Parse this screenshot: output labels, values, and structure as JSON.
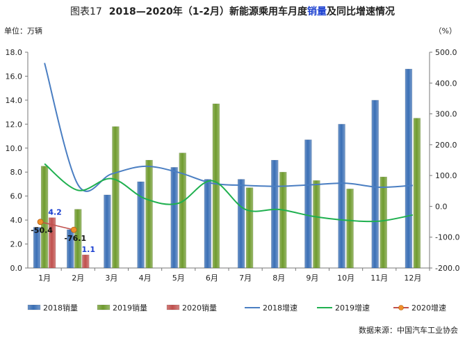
{
  "title": {
    "figure_no": "图表17",
    "main_before": "2018—2020年（1-2月）新能源乘用车月度",
    "highlight": "销量",
    "main_after": "及同比增速情况"
  },
  "unit_left": "单位：万辆",
  "unit_right": "（%）",
  "source": "数据来源：中国汽车工业协会",
  "colors": {
    "bar2018": "#3a6fb5",
    "bar2019": "#6f9b2e",
    "bar2020": "#c0504d",
    "line2018": "#4a7ec2",
    "line2019": "#1fb04f",
    "line2020": "#c0504d",
    "marker2020": "#f0902a",
    "label2020": "#1a3fd0"
  },
  "chart_data": {
    "type": "bar",
    "categories": [
      "1月",
      "2月",
      "3月",
      "4月",
      "5月",
      "6月",
      "7月",
      "8月",
      "9月",
      "10月",
      "11月",
      "12月"
    ],
    "y_left": {
      "min": 0,
      "max": 18,
      "step": 2,
      "tick_labels": [
        "0.0",
        "2.0",
        "4.0",
        "6.0",
        "8.0",
        "10.0",
        "12.0",
        "14.0",
        "16.0",
        "18.0"
      ]
    },
    "y_right": {
      "min": -200,
      "max": 500,
      "step": 100,
      "tick_labels": [
        "-200.0",
        "-100.0",
        "0.0",
        "100.0",
        "200.0",
        "300.0",
        "400.0",
        "500.0"
      ]
    },
    "bar_series": [
      {
        "name": "2018销量",
        "values": [
          3.4,
          3.2,
          6.1,
          7.2,
          8.4,
          7.4,
          7.4,
          9.0,
          10.7,
          12.0,
          14.0,
          16.6
        ]
      },
      {
        "name": "2019销量",
        "values": [
          8.5,
          4.9,
          11.8,
          9.0,
          9.6,
          13.7,
          6.7,
          8.0,
          7.3,
          6.6,
          7.6,
          12.5
        ]
      },
      {
        "name": "2020销量",
        "values": [
          4.2,
          1.1
        ]
      }
    ],
    "line_series": [
      {
        "name": "2018增速",
        "values": [
          465,
          70,
          105,
          130,
          110,
          75,
          68,
          65,
          70,
          75,
          62,
          68
        ]
      },
      {
        "name": "2019增速",
        "values": [
          138,
          52,
          90,
          25,
          10,
          83,
          -10,
          -10,
          -32,
          -45,
          -48,
          -28
        ]
      },
      {
        "name": "2020增速",
        "values": [
          -50.4,
          -76.1
        ]
      }
    ],
    "data_labels": {
      "bar2020": [
        "4.2",
        "1.1"
      ],
      "line2020": [
        "-50.4",
        "-76.1"
      ]
    },
    "legend": [
      "2018销量",
      "2019销量",
      "2020销量",
      "2018增速",
      "2019增速",
      "2020增速"
    ],
    "legend_position": "bottom",
    "grid": false
  }
}
